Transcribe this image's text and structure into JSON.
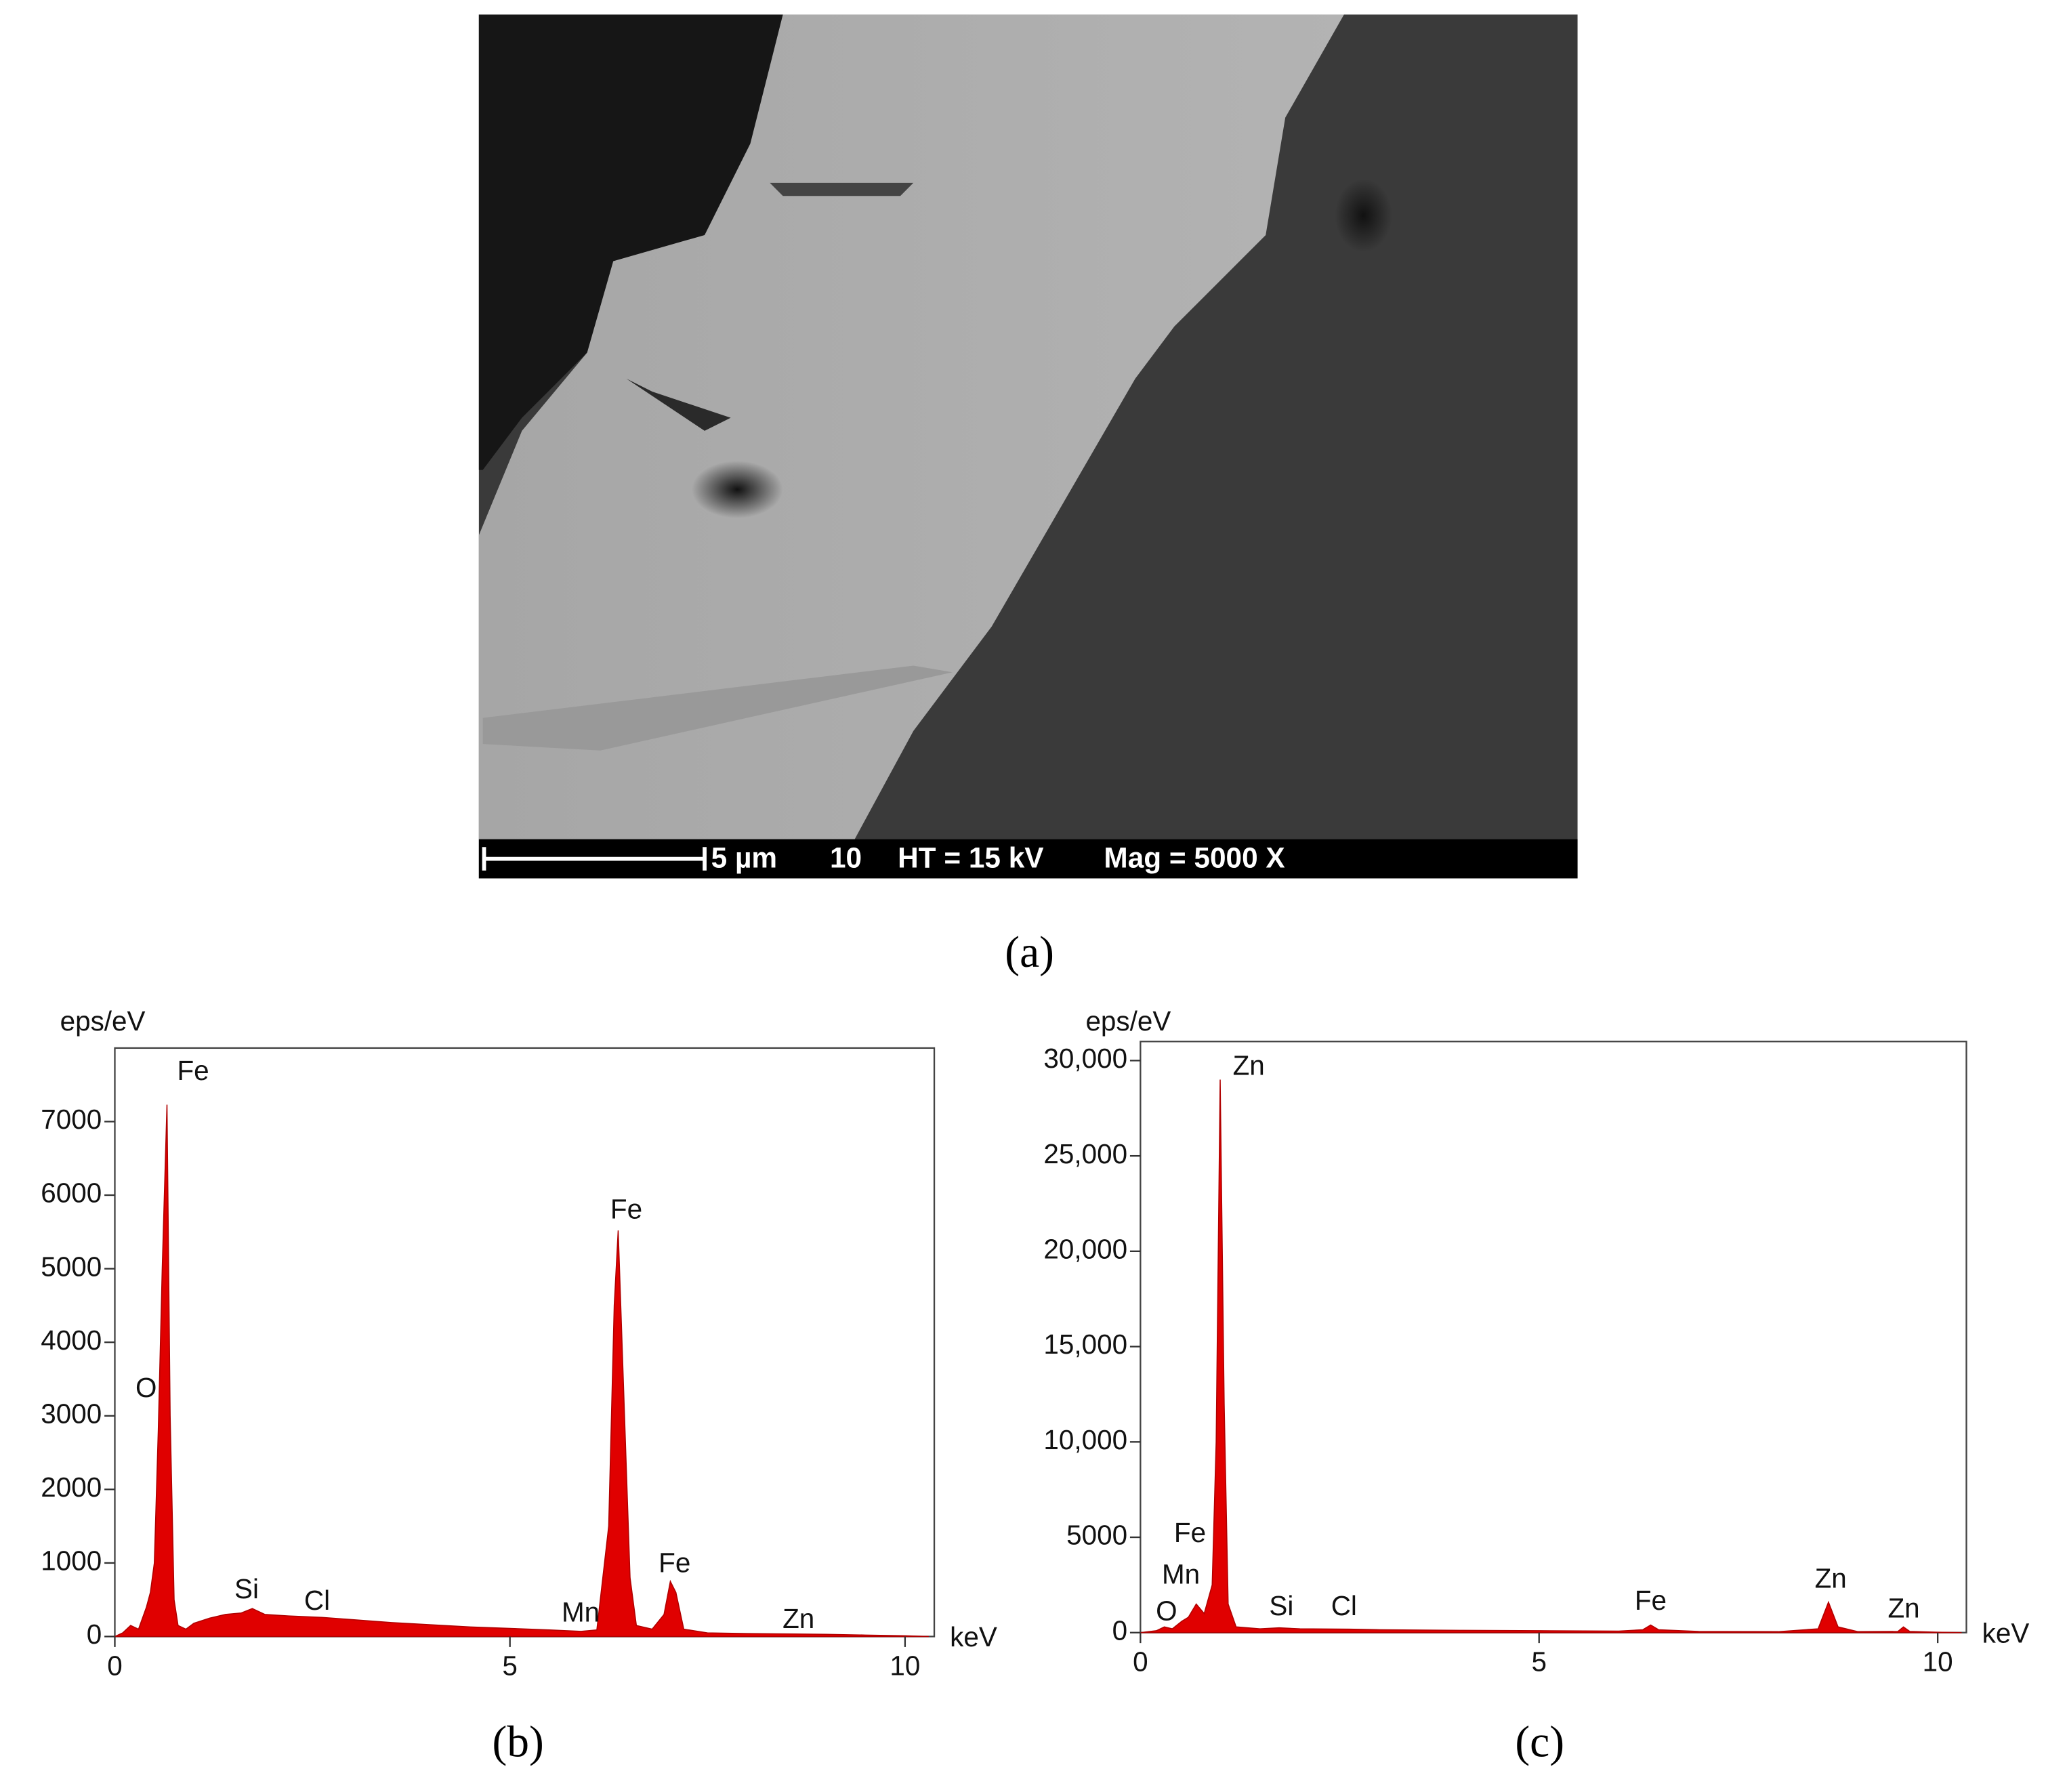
{
  "image": {
    "label": "(a)",
    "scale_bar": "5 µm",
    "info": [
      "10",
      "HT = 15 kV",
      "Mag = 5000 X"
    ]
  },
  "chart_data": [
    {
      "type": "area",
      "label": "(b)",
      "ylabel": "eps/eV",
      "xlabel": "keV",
      "color": "#e00000",
      "xlim": [
        0,
        10.37
      ],
      "xticks": [
        0,
        5,
        10
      ],
      "ylim": [
        0,
        8000
      ],
      "yticks": [
        0,
        1000,
        2000,
        3000,
        4000,
        5000,
        6000,
        7000
      ],
      "annotations": [
        "Fe",
        "O",
        "Si",
        "Cl",
        "Fe",
        "Mn",
        "Fe",
        "Zn"
      ],
      "x": [
        0,
        0.1,
        0.2,
        0.3,
        0.4,
        0.45,
        0.5,
        0.55,
        0.6,
        0.66,
        0.7,
        0.75,
        0.8,
        0.9,
        1.0,
        1.2,
        1.4,
        1.6,
        1.74,
        1.9,
        2.2,
        2.62,
        3.0,
        3.5,
        4.0,
        4.5,
        5.0,
        5.5,
        5.9,
        6.1,
        6.25,
        6.32,
        6.37,
        6.45,
        6.52,
        6.6,
        6.8,
        6.95,
        7.03,
        7.1,
        7.2,
        7.5,
        8.0,
        8.6,
        9.0,
        9.5,
        10.0,
        10.3
      ],
      "values": [
        0,
        50,
        150,
        100,
        400,
        600,
        1000,
        2800,
        5000,
        7230,
        3000,
        500,
        150,
        100,
        180,
        250,
        300,
        320,
        380,
        300,
        280,
        260,
        230,
        190,
        160,
        130,
        110,
        90,
        70,
        90,
        1500,
        4500,
        5520,
        3000,
        800,
        150,
        100,
        300,
        750,
        600,
        100,
        50,
        40,
        35,
        30,
        20,
        10,
        0
      ]
    },
    {
      "type": "area",
      "label": "(c)",
      "ylabel": "eps/eV",
      "xlabel": "keV",
      "color": "#e00000",
      "xlim": [
        0,
        10.36
      ],
      "xticks": [
        0,
        5,
        10
      ],
      "ylim": [
        0,
        31000
      ],
      "yticks": [
        0,
        5000,
        {
          "value": 10000,
          "label": "10,000"
        },
        {
          "value": 15000,
          "label": "15,000"
        },
        {
          "value": 20000,
          "label": "20,000"
        },
        {
          "value": 25000,
          "label": "25,000"
        },
        {
          "value": 30000,
          "label": "30,000"
        }
      ],
      "annotations": [
        "Zn",
        "Fe",
        "Mn",
        "O",
        "Si",
        "Cl",
        "Fe",
        "Zn",
        "Zn"
      ],
      "x": [
        0,
        0.2,
        0.3,
        0.4,
        0.52,
        0.6,
        0.7,
        0.8,
        0.9,
        0.95,
        1.0,
        1.05,
        1.1,
        1.2,
        1.5,
        1.74,
        2.0,
        2.62,
        3.0,
        4.0,
        5.0,
        6.0,
        6.3,
        6.4,
        6.5,
        7.0,
        8.0,
        8.5,
        8.63,
        8.75,
        9.0,
        9.5,
        9.57,
        9.65,
        10.0,
        10.3
      ],
      "values": [
        0,
        100,
        300,
        200,
        600,
        800,
        1500,
        1000,
        2500,
        10000,
        29000,
        12000,
        1500,
        300,
        200,
        250,
        200,
        180,
        150,
        120,
        100,
        80,
        150,
        400,
        150,
        60,
        50,
        200,
        1600,
        300,
        50,
        60,
        300,
        60,
        20,
        0
      ]
    }
  ]
}
